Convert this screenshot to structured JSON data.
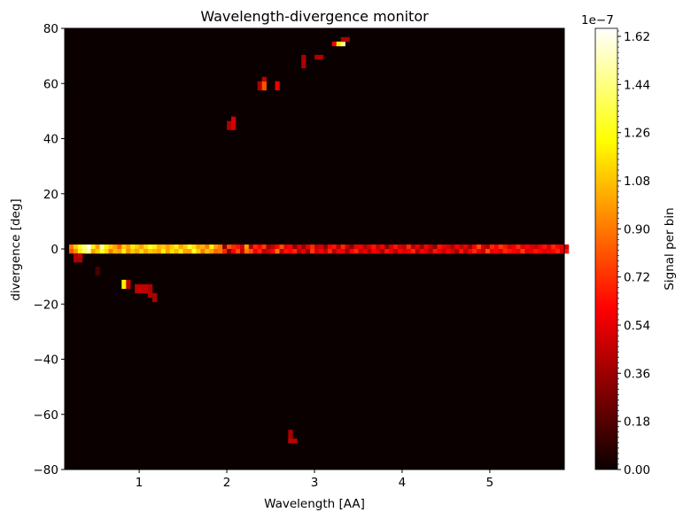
{
  "chart_data": {
    "type": "heatmap",
    "title": "Wavelength-divergence monitor",
    "xlabel": "Wavelength [AA]",
    "ylabel": "divergence [deg]",
    "xlim": [
      0.15,
      5.85
    ],
    "ylim": [
      -80,
      80
    ],
    "x_ticks": [
      1,
      2,
      3,
      4,
      5
    ],
    "y_ticks": [
      -80,
      -60,
      -40,
      -20,
      0,
      20,
      40,
      60,
      80
    ],
    "bin_counts": {
      "x": 114,
      "y": 100
    },
    "colormap": "hot",
    "background_color": "#0b0000",
    "grid": false,
    "colorbar": {
      "label": "Signal per bin",
      "offset_text": "1e−7",
      "range": [
        0.0,
        1.65
      ],
      "ticks": [
        "0.00",
        "0.18",
        "0.36",
        "0.54",
        "0.72",
        "0.90",
        "1.08",
        "1.26",
        "1.44",
        "1.62"
      ]
    },
    "cells": [
      {
        "x0": 0.25,
        "x1": 0.35,
        "y0": -4.8,
        "y1": -1.6,
        "v": 0.4
      },
      {
        "x0": 0.3,
        "x1": 0.35,
        "y0": -3.2,
        "y1": -1.6,
        "v": 0.45
      },
      {
        "x0": 0.5,
        "x1": 0.55,
        "y0": -9.6,
        "y1": -6.4,
        "v": 0.15
      },
      {
        "x0": 0.8,
        "x1": 0.85,
        "y0": -14.4,
        "y1": -11.2,
        "v": 1.2
      },
      {
        "x0": 0.85,
        "x1": 0.9,
        "y0": -14.4,
        "y1": -11.2,
        "v": 0.45
      },
      {
        "x0": 0.95,
        "x1": 1.1,
        "y0": -16.0,
        "y1": -12.8,
        "v": 0.45
      },
      {
        "x0": 1.1,
        "x1": 1.15,
        "y0": -17.6,
        "y1": -12.8,
        "v": 0.4
      },
      {
        "x0": 1.15,
        "x1": 1.2,
        "y0": -19.2,
        "y1": -16.0,
        "v": 0.4
      },
      {
        "x0": 2.0,
        "x1": 2.05,
        "y0": 43.2,
        "y1": 46.4,
        "v": 0.4
      },
      {
        "x0": 2.05,
        "x1": 2.1,
        "y0": 43.2,
        "y1": 48.0,
        "v": 0.5
      },
      {
        "x0": 2.35,
        "x1": 2.4,
        "y0": 57.6,
        "y1": 60.8,
        "v": 0.4
      },
      {
        "x0": 2.4,
        "x1": 2.45,
        "y0": 57.6,
        "y1": 60.8,
        "v": 0.8
      },
      {
        "x0": 2.4,
        "x1": 2.45,
        "y0": 60.8,
        "y1": 62.4,
        "v": 0.45
      },
      {
        "x0": 2.55,
        "x1": 2.6,
        "y0": 57.6,
        "y1": 60.8,
        "v": 0.55
      },
      {
        "x0": 2.85,
        "x1": 2.9,
        "y0": 65.6,
        "y1": 70.4,
        "v": 0.4
      },
      {
        "x0": 3.0,
        "x1": 3.1,
        "y0": 68.8,
        "y1": 70.4,
        "v": 0.4
      },
      {
        "x0": 3.2,
        "x1": 3.25,
        "y0": 73.6,
        "y1": 75.2,
        "v": 0.6
      },
      {
        "x0": 3.25,
        "x1": 3.3,
        "y0": 73.6,
        "y1": 75.2,
        "v": 1.2
      },
      {
        "x0": 3.3,
        "x1": 3.35,
        "y0": 73.6,
        "y1": 75.2,
        "v": 1.5
      },
      {
        "x0": 3.3,
        "x1": 3.4,
        "y0": 75.2,
        "y1": 76.8,
        "v": 0.4
      },
      {
        "x0": 2.7,
        "x1": 2.75,
        "y0": -68.8,
        "y1": -65.6,
        "v": 0.4
      },
      {
        "x0": 2.7,
        "x1": 2.8,
        "y0": -70.4,
        "y1": -68.8,
        "v": 0.45
      }
    ],
    "ridge": {
      "y0": -1.6,
      "y1": 1.6,
      "x_start": 0.2,
      "bin_width": 0.05,
      "values_upper": [
        0.9,
        1.1,
        1.3,
        1.45,
        1.6,
        1.2,
        1.0,
        1.5,
        1.2,
        1.1,
        1.0,
        0.85,
        1.1,
        1.0,
        1.2,
        1.1,
        1.0,
        1.15,
        1.3,
        1.2,
        1.05,
        1.1,
        1.0,
        1.1,
        1.2,
        1.0,
        1.1,
        1.3,
        1.15,
        1.0,
        1.05,
        0.9,
        1.2,
        1.0,
        0.9,
        0.3,
        0.8,
        0.7,
        0.65,
        0.5,
        1.0,
        0.4,
        0.7,
        0.6,
        0.75,
        0.35,
        0.45,
        0.6,
        0.8,
        0.55,
        0.6,
        0.3,
        0.5,
        0.35,
        0.55,
        0.7,
        0.45,
        0.5,
        0.3,
        0.6,
        0.65,
        0.4,
        0.7,
        0.45,
        0.3,
        0.55,
        0.6,
        0.4,
        0.5,
        0.65,
        0.45,
        0.6,
        0.3,
        0.5,
        0.65,
        0.5,
        0.45,
        0.7,
        0.4,
        0.55,
        0.35,
        0.6,
        0.45,
        0.3,
        0.65,
        0.55,
        0.5,
        0.4,
        0.6,
        0.45,
        0.55,
        0.35,
        0.6,
        0.8,
        0.5,
        0.4,
        0.7,
        0.6,
        0.75,
        0.65,
        0.5,
        0.55,
        0.7,
        0.5,
        0.6,
        0.5,
        0.45,
        0.55,
        0.65,
        0.5,
        0.7,
        0.6,
        0.55,
        0.5
      ],
      "values_lower": [
        0.8,
        0.95,
        1.2,
        1.4,
        1.5,
        1.0,
        1.1,
        1.3,
        1.15,
        0.9,
        1.05,
        1.0,
        1.2,
        0.95,
        1.1,
        1.0,
        1.15,
        1.0,
        1.1,
        1.05,
        1.0,
        1.2,
        1.0,
        1.15,
        1.05,
        1.2,
        1.0,
        1.0,
        1.3,
        1.1,
        0.9,
        1.1,
        1.0,
        0.85,
        0.9,
        0.7,
        0.3,
        0.6,
        0.8,
        0.45,
        0.9,
        0.8,
        0.55,
        0.7,
        0.4,
        0.5,
        0.6,
        0.9,
        0.45,
        0.65,
        0.6,
        0.7,
        0.4,
        0.55,
        0.3,
        0.75,
        0.5,
        0.6,
        0.45,
        0.7,
        0.4,
        0.6,
        0.55,
        0.35,
        0.6,
        0.7,
        0.45,
        0.55,
        0.4,
        0.6,
        0.5,
        0.35,
        0.65,
        0.55,
        0.4,
        0.6,
        0.5,
        0.55,
        0.7,
        0.4,
        0.6,
        0.5,
        0.4,
        0.65,
        0.55,
        0.45,
        0.6,
        0.5,
        0.35,
        0.65,
        0.4,
        0.6,
        0.7,
        0.55,
        0.45,
        0.8,
        0.55,
        0.6,
        0.5,
        0.7,
        0.65,
        0.6,
        0.55,
        0.75,
        0.5,
        0.55,
        0.65,
        0.6,
        0.5,
        0.55,
        0.6,
        0.7,
        0.5,
        0.65
      ]
    }
  }
}
